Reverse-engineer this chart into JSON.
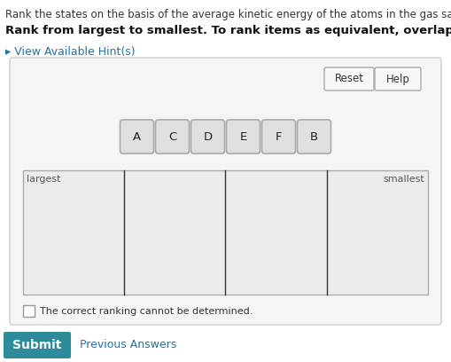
{
  "bg_color": "#ffffff",
  "title_line1": "Rank the states on the basis of the average kinetic energy of the atoms in the gas sample.",
  "title_line2": "Rank from largest to smallest. To rank items as equivalent, overlap them.",
  "hint_text": "▸ View Available Hint(s)",
  "hint_color": "#2472a4",
  "panel_bg": "#f5f5f5",
  "panel_border": "#cccccc",
  "reset_btn_text": "Reset",
  "help_btn_text": "Help",
  "tokens": [
    "A",
    "C",
    "D",
    "E",
    "F",
    "B"
  ],
  "token_bg": "#e0e0e0",
  "token_border": "#aaaaaa",
  "n_columns": 4,
  "largest_label": "largest",
  "smallest_label": "smallest",
  "checkbox_text": "The correct ranking cannot be determined.",
  "submit_btn_text": "Submit",
  "submit_btn_color": "#2e8b9a",
  "prev_answers_text": "Previous Answers",
  "prev_answers_color": "#2472a4",
  "font_size_title1": 8.5,
  "font_size_title2": 9.5,
  "font_size_hint": 9.0,
  "font_size_token": 9.5,
  "font_size_label": 8.0,
  "font_size_checkbox": 8.0,
  "font_size_btn": 9.5,
  "font_size_submit": 10.0
}
